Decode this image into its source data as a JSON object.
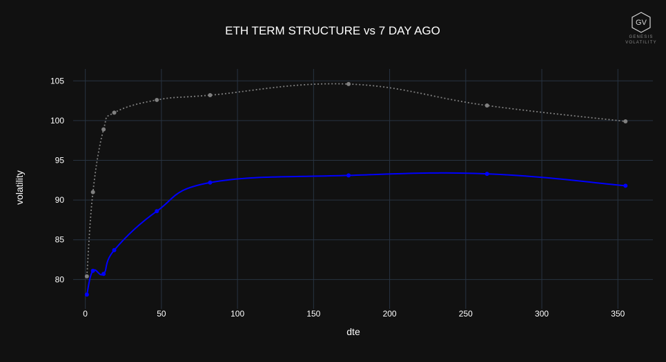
{
  "chart_data": {
    "type": "line",
    "title": "ETH TERM STRUCTURE vs 7 DAY AGO",
    "xlabel": "dte",
    "ylabel": "volatility",
    "xlim": [
      -8,
      373
    ],
    "ylim": [
      76.3,
      106.5
    ],
    "x_ticks": [
      0,
      50,
      100,
      150,
      200,
      250,
      300,
      350
    ],
    "y_ticks": [
      80,
      85,
      90,
      95,
      100,
      105
    ],
    "grid": true,
    "series": [
      {
        "color": "#808080",
        "dash": "dot",
        "x": [
          1,
          5,
          12,
          19,
          47,
          82,
          173,
          264,
          355
        ],
        "y": [
          80.4,
          91.0,
          98.9,
          101.0,
          102.6,
          103.2,
          104.6,
          101.9,
          99.9
        ]
      },
      {
        "color": "#0000ff",
        "dash": "solid",
        "x": [
          1,
          5,
          12,
          19,
          47,
          82,
          173,
          264,
          355
        ],
        "y": [
          78.1,
          81.1,
          80.7,
          83.7,
          88.6,
          92.2,
          93.1,
          93.3,
          91.8
        ]
      }
    ]
  },
  "logo": {
    "glyph": "GV",
    "line1": "GENESIS",
    "line2": "VOLATILITY",
    "color": "#8a8a8a"
  }
}
